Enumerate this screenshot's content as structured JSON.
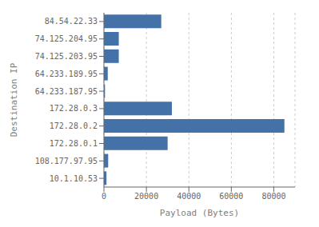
{
  "chart_data": {
    "type": "bar",
    "orientation": "horizontal",
    "categories": [
      "10.1.10.53",
      "108.177.97.95",
      "172.28.0.1",
      "172.28.0.2",
      "172.28.0.3",
      "64.233.187.95",
      "64.233.189.95",
      "74.125.203.95",
      "74.125.204.95",
      "84.54.22.33"
    ],
    "values": [
      1200,
      2000,
      30000,
      85000,
      32000,
      500,
      1800,
      7000,
      7000,
      27000
    ],
    "color": "#4472a8",
    "xlabel": "Payload (Bytes)",
    "ylabel": "Destination IP",
    "xlim": [
      0,
      90000
    ],
    "xticks": [
      0,
      20000,
      40000,
      60000,
      80000
    ],
    "grid": true
  }
}
